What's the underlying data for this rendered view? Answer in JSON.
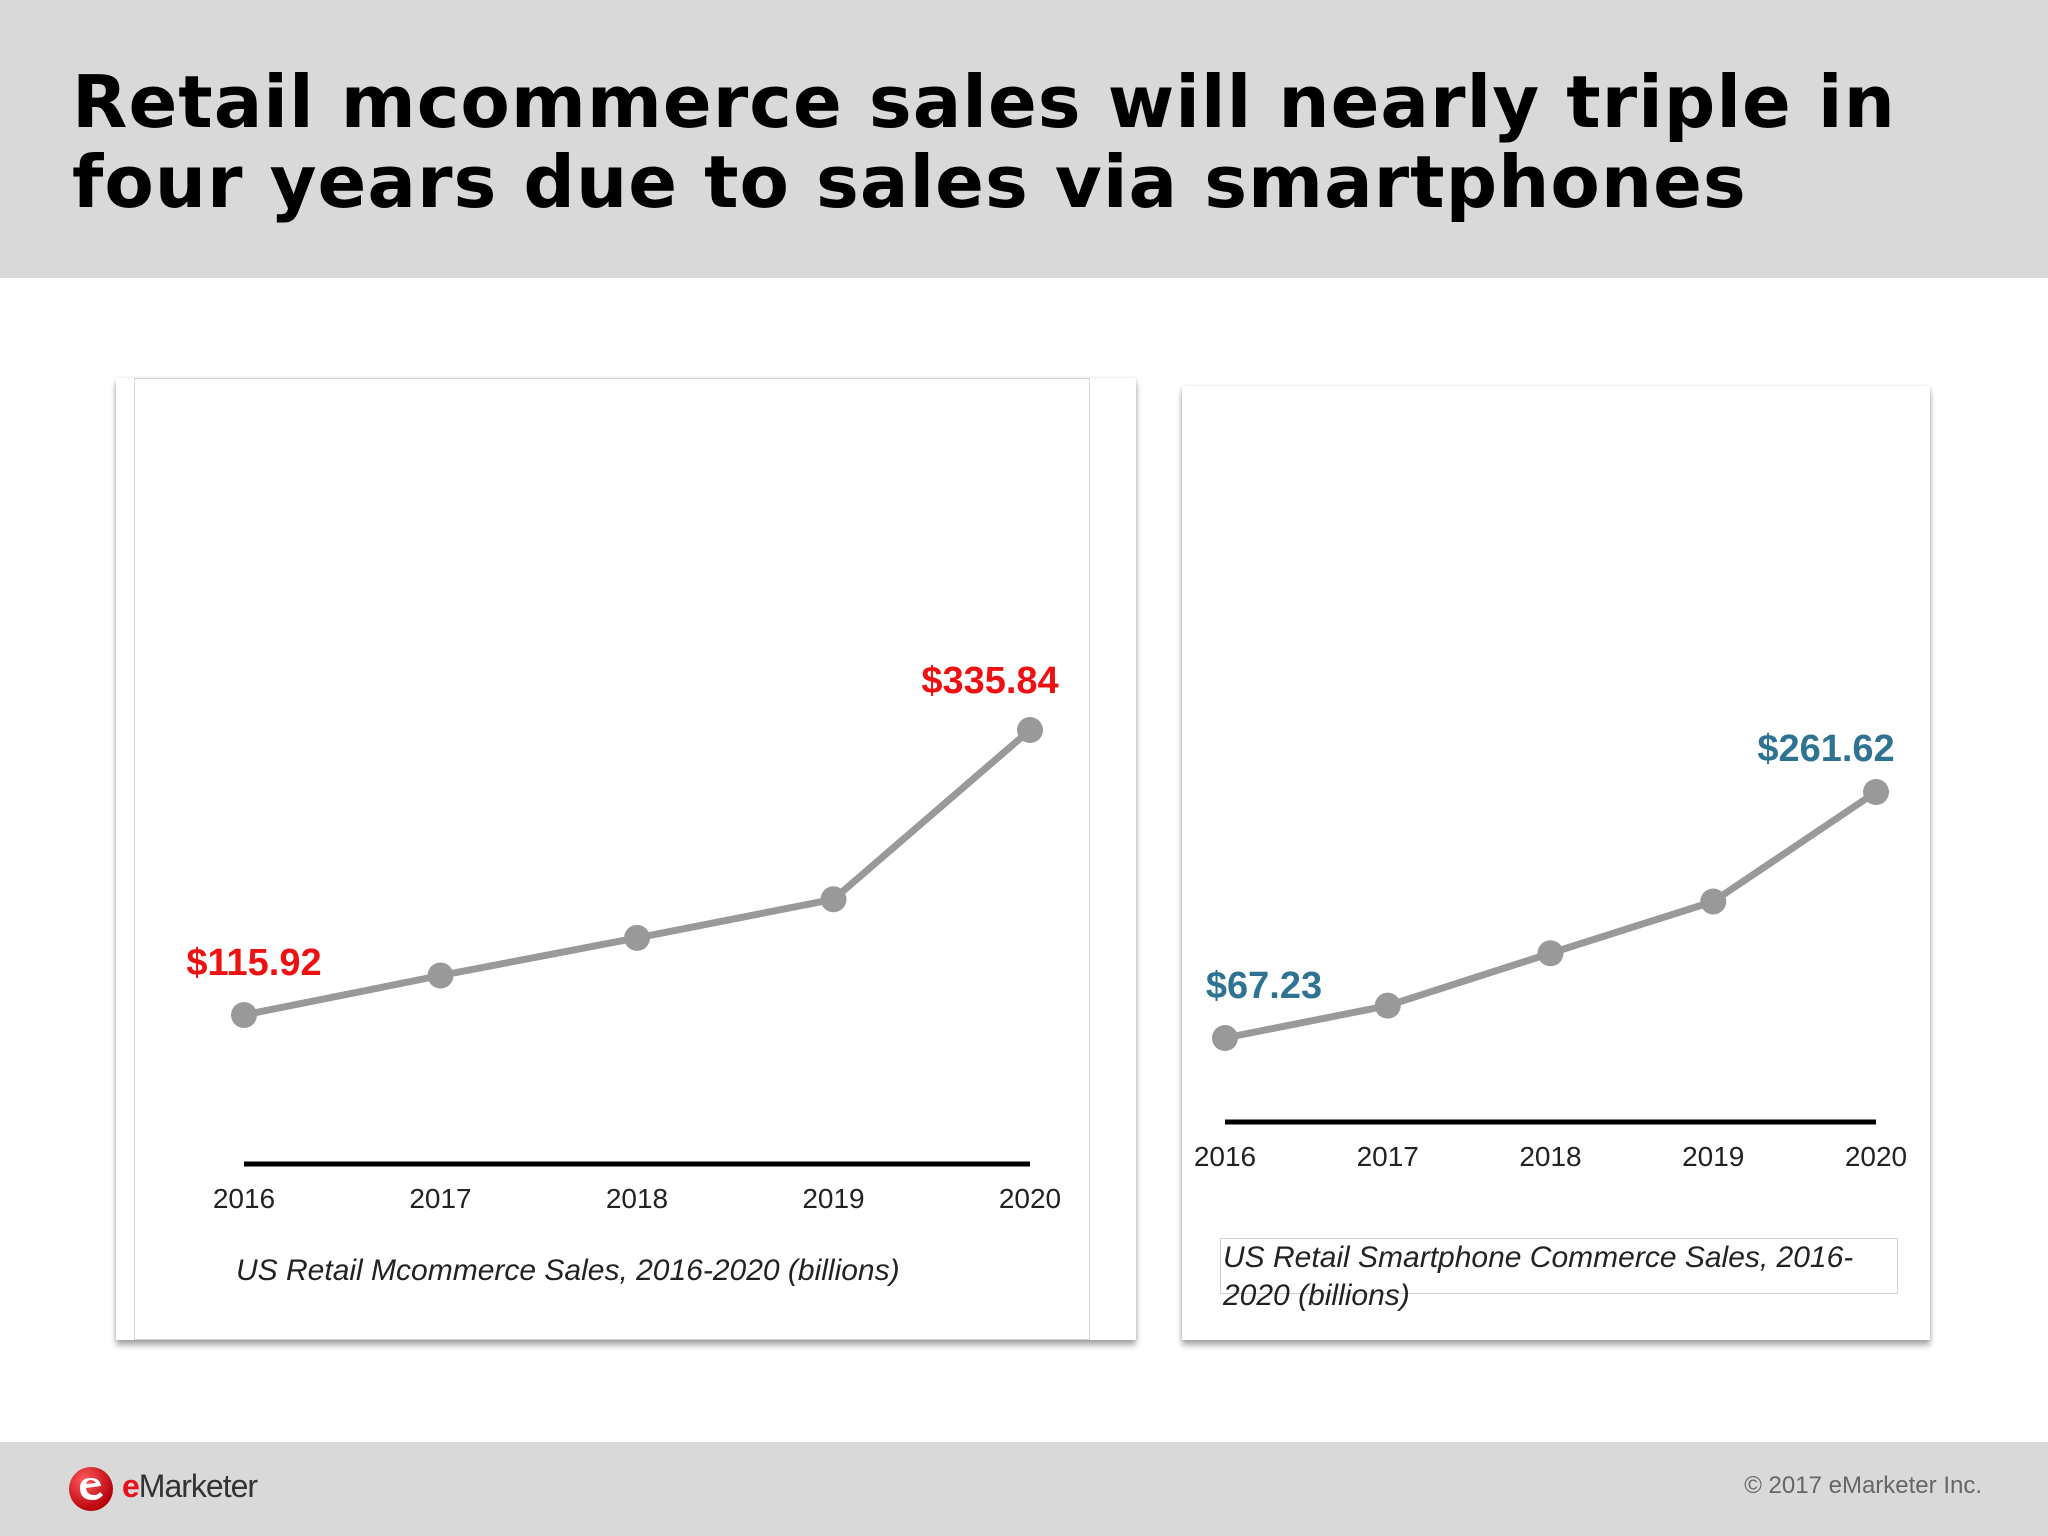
{
  "headline": "Retail mcommerce sales will nearly triple in four years due to sales via smartphones",
  "footer": {
    "logo_text_e": "e",
    "logo_text_rest": "Marketer",
    "copyright": "© 2017 eMarketer Inc."
  },
  "colors": {
    "line": "#999999",
    "axis": "#000000",
    "left_label": "#ee1111",
    "right_label": "#2e7391"
  },
  "chart_data": [
    {
      "type": "line",
      "title": "US Retail Mcommerce Sales, 2016-2020 (billions)",
      "x": [
        "2016",
        "2017",
        "2018",
        "2019",
        "2020"
      ],
      "series": [
        {
          "values": [
            115.92,
            146.4,
            175.4,
            205.2,
            335.84
          ]
        }
      ],
      "data_labels": [
        {
          "index": 0,
          "text": "$115.92"
        },
        {
          "index": 4,
          "text": "$335.84"
        }
      ],
      "grid": false,
      "legend": "none"
    },
    {
      "type": "line",
      "title": "US Retail Smartphone Commerce Sales, 2016-2020 (billions)",
      "x": [
        "2016",
        "2017",
        "2018",
        "2019",
        "2020"
      ],
      "series": [
        {
          "values": [
            67.23,
            92.8,
            134.2,
            175.1,
            261.62
          ]
        }
      ],
      "data_labels": [
        {
          "index": 0,
          "text": "$67.23"
        },
        {
          "index": 4,
          "text": "$261.62"
        }
      ],
      "grid": false,
      "legend": "none"
    }
  ]
}
